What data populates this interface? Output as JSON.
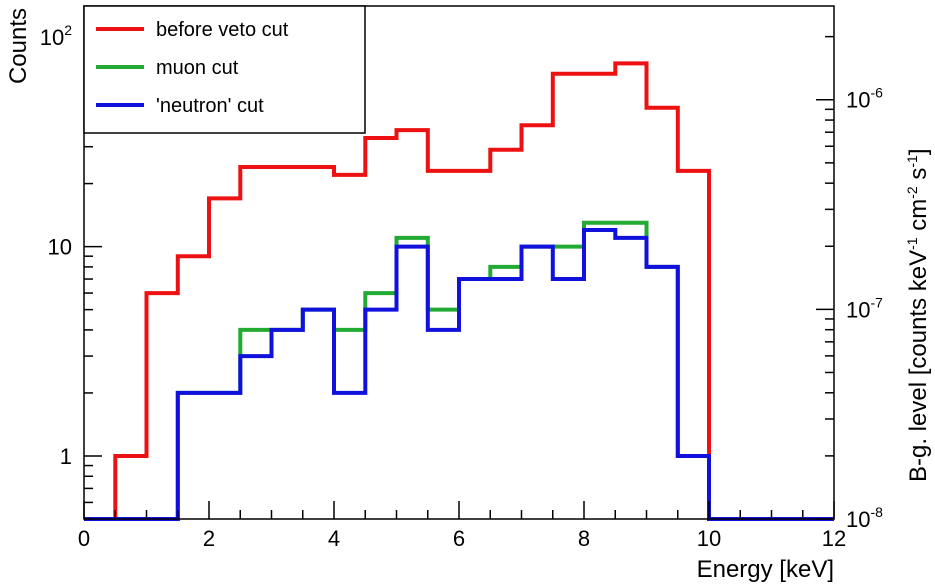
{
  "chart_data": {
    "type": "line",
    "drawstyle": "histogram-step",
    "xlabel": "Energy [keV]",
    "ylabel": "Counts",
    "y2label": {
      "text": "B-g. level [counts keV",
      "sup1": "-1",
      "mid": " cm",
      "sup2": "-2",
      "mid2": " s",
      "sup3": "-1",
      "end": "]"
    },
    "xlim": [
      0,
      12
    ],
    "ylim": [
      0.5,
      141
    ],
    "yscale": "log",
    "y2lim": [
      1e-08,
      2.8e-06
    ],
    "y2scale": "log",
    "x_ticks": [
      "0",
      "2",
      "4",
      "6",
      "8",
      "10",
      "12"
    ],
    "y_ticks": [
      {
        "value": 1,
        "label": "1",
        "sup": ""
      },
      {
        "value": 10,
        "label": "10",
        "sup": ""
      },
      {
        "value": 100,
        "label": "10",
        "sup": "2"
      }
    ],
    "y2_ticks": [
      {
        "value": 1e-08,
        "label": "10",
        "sup": "-8"
      },
      {
        "value": 1e-07,
        "label": "10",
        "sup": "-7"
      },
      {
        "value": 1e-06,
        "label": "10",
        "sup": "-6"
      }
    ],
    "bin_edges": [
      0,
      0.5,
      1,
      1.5,
      2,
      2.5,
      3,
      3.5,
      4,
      4.5,
      5,
      5.5,
      6,
      6.5,
      7,
      7.5,
      8,
      8.5,
      9,
      9.5,
      10,
      10.5,
      11,
      11.5,
      12
    ],
    "series": [
      {
        "name": "before veto cut",
        "color": "#ee1111",
        "values": [
          0,
          1,
          6,
          9,
          17,
          24,
          24,
          24,
          22,
          33,
          36,
          23,
          23,
          29,
          38,
          67,
          67,
          75,
          46,
          23,
          0,
          0,
          0,
          0
        ]
      },
      {
        "name": "muon cut",
        "color": "#22aa33",
        "values": [
          0,
          0,
          0,
          2,
          2,
          4,
          4,
          5,
          4,
          6,
          11,
          5,
          7,
          8,
          10,
          10,
          13,
          13,
          8,
          1,
          0,
          0,
          0,
          0
        ]
      },
      {
        "name": "'neutron' cut",
        "color": "#1111dd",
        "values": [
          0,
          0,
          0,
          2,
          2,
          3,
          4,
          5,
          2,
          5,
          10,
          4,
          7,
          7,
          10,
          7,
          12,
          11,
          8,
          1,
          0,
          0,
          0,
          0
        ]
      }
    ],
    "legend_position": "top-left",
    "grid": false
  }
}
